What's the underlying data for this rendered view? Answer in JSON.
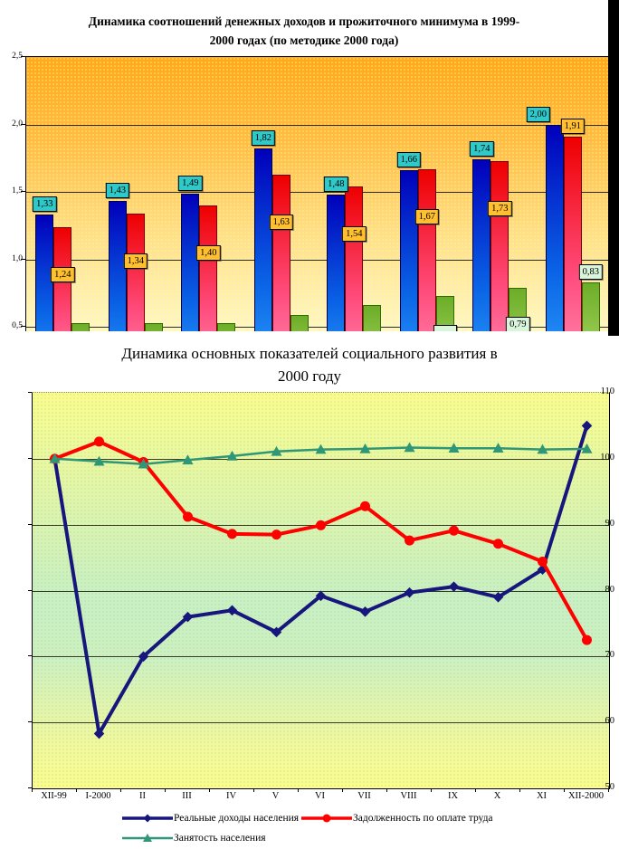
{
  "chart_data": [
    {
      "type": "bar",
      "title": "Динамика соотношений денежных доходов и прожиточного минимума в 1999-2000 годах (по методике 2000 года)",
      "title_lines": [
        "Динамика соотношений денежных доходов и прожиточного минимума в 1999-",
        "2000 годах (по методике 2000 года)"
      ],
      "categories_visible": false,
      "ylim_visible": [
        0.47,
        2.5
      ],
      "grid": "horizontal",
      "y_ticks": [
        {
          "value": 2.5,
          "label": "2,5"
        },
        {
          "value": 2.0,
          "label": "2,0"
        },
        {
          "value": 1.5,
          "label": "1,5"
        },
        {
          "value": 1.0,
          "label": "1,0"
        },
        {
          "value": 0.5,
          "label": "0,5"
        }
      ],
      "plot_bg": [
        "#FFA81C",
        "#FFDF8C",
        "#FFF7C9"
      ],
      "series": [
        {
          "name": "bar-series-blue",
          "colors": [
            "#0000BB",
            "#0A64E6",
            "#35AAFF"
          ],
          "border": "#00004D",
          "label_bg": "#30C9C9",
          "values": [
            1.33,
            1.43,
            1.49,
            1.82,
            1.48,
            1.66,
            1.74,
            2.0
          ],
          "labels": [
            "1,33",
            "1,43",
            "1,49",
            "1,82",
            "1,48",
            "1,66",
            "1,74",
            "2,00"
          ],
          "label_pos": [
            "above",
            "above",
            "above",
            "above",
            "above",
            "above",
            "above",
            "above"
          ],
          "label_dx": [
            0,
            0,
            0,
            0,
            0,
            0,
            0,
            -18
          ]
        },
        {
          "name": "bar-series-red",
          "colors": [
            "#EE0000",
            "#FF4D7E",
            "#FF9BBE"
          ],
          "border": "#7A0000",
          "label_bg": "#FFBF2F",
          "values": [
            1.24,
            1.34,
            1.4,
            1.63,
            1.54,
            1.67,
            1.73,
            1.91
          ],
          "labels": [
            "1,24",
            "1,34",
            "1,40",
            "1,63",
            "1,54",
            "1,67",
            "1,73",
            "1,91"
          ],
          "label_pos": [
            "inside",
            "inside",
            "inside",
            "inside",
            "inside",
            "inside",
            "inside",
            "above"
          ],
          "label_dx": [
            0,
            0,
            0,
            0,
            0,
            0,
            0,
            0
          ]
        },
        {
          "name": "bar-series-green",
          "colors": [
            "#6CAD27",
            "#9ACC55",
            "#C4E680"
          ],
          "border": "#2F6B00",
          "label_bg": "#D9F6DC",
          "values": [
            0.53,
            0.53,
            0.53,
            0.59,
            0.66,
            0.73,
            0.79,
            0.83
          ],
          "labels": [
            null,
            null,
            null,
            null,
            null,
            "",
            "0,79",
            "0,83"
          ],
          "label_pos": [
            null,
            null,
            null,
            null,
            null,
            "inside",
            "inside",
            "above"
          ],
          "label_dx": [
            0,
            0,
            0,
            0,
            0,
            0,
            0,
            0
          ]
        }
      ]
    },
    {
      "type": "line",
      "title": "Динамика основных показателей социального развития в 2000 году",
      "title_lines": [
        "Динамика основных показателей социального развития в",
        "2000 году"
      ],
      "categories": [
        "XII-99",
        "I-2000",
        "II",
        "III",
        "IV",
        "V",
        "VI",
        "VII",
        "VIII",
        "IX",
        "X",
        "XI",
        "XII-2000"
      ],
      "ylim": [
        50,
        110
      ],
      "y_ticks": [
        110,
        100,
        90,
        80,
        70,
        60,
        50
      ],
      "grid": "horizontal",
      "legend_position": "bottom",
      "plot_bg": [
        "#FCFC8C",
        "#C9EFC3",
        "#FCFC8C"
      ],
      "series": [
        {
          "name": "Реальные доходы населения",
          "color": "#16167D",
          "marker": "diamond",
          "line_width": 4,
          "values": [
            100,
            58.3,
            70,
            76,
            77,
            73.7,
            79.2,
            76.8,
            79.7,
            80.6,
            79,
            83.2,
            105
          ]
        },
        {
          "name": "Задолженность по оплате труда",
          "color": "#FF0000",
          "marker": "circle",
          "line_width": 4,
          "values": [
            100,
            102.6,
            99.5,
            91.2,
            88.6,
            88.5,
            89.9,
            92.8,
            87.6,
            89.1,
            87.1,
            84.4,
            72.5
          ]
        },
        {
          "name": "Занятость населения",
          "color": "#2F9678",
          "marker": "triangle",
          "line_width": 2.5,
          "values": [
            100,
            99.6,
            99.2,
            99.8,
            100.4,
            101.1,
            101.4,
            101.5,
            101.7,
            101.6,
            101.6,
            101.4,
            101.5
          ]
        }
      ]
    }
  ]
}
